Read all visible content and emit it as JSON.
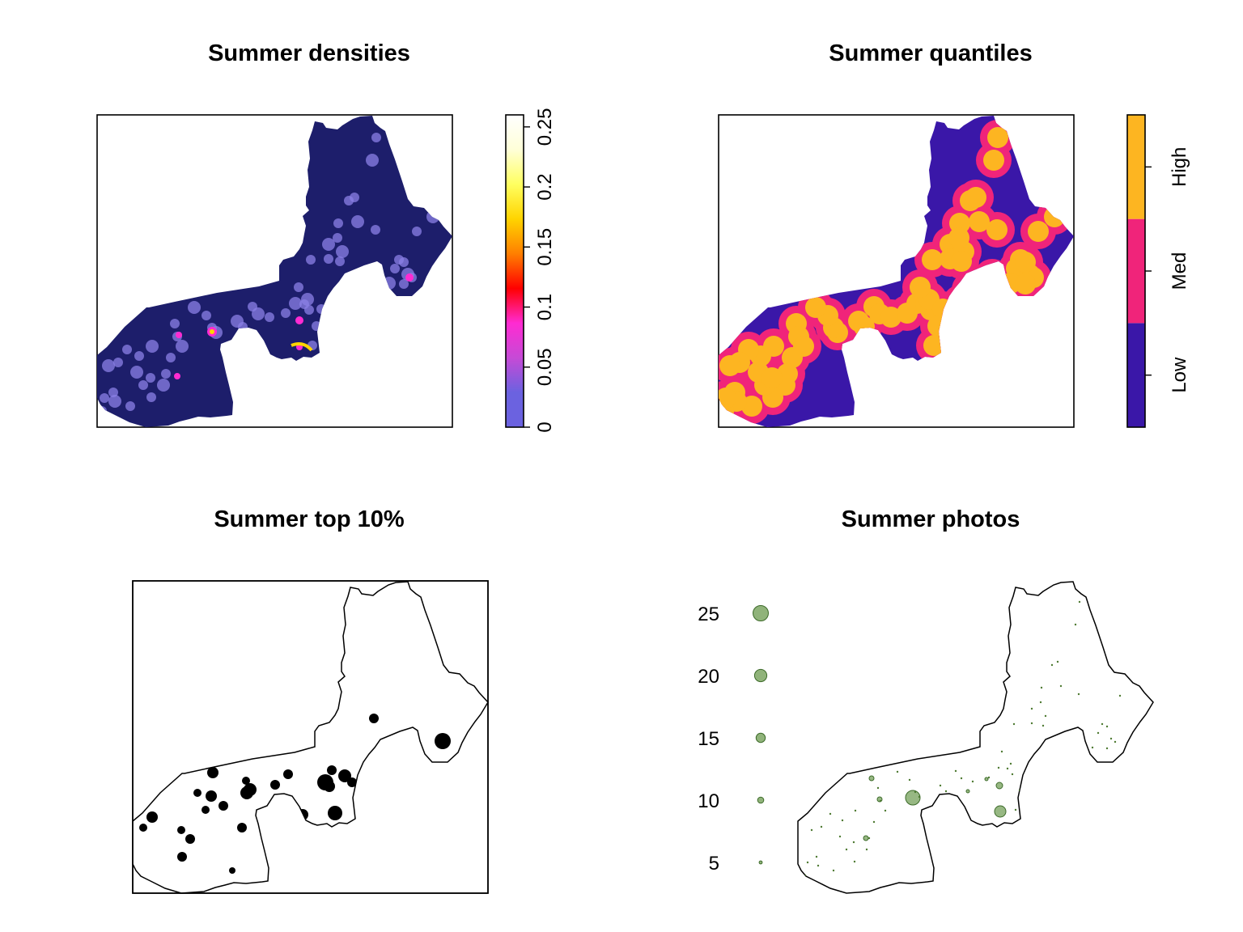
{
  "panels": {
    "densities": {
      "title": "Summer densities",
      "legend": {
        "type": "continuous",
        "range": [
          0,
          0.26
        ],
        "ticks": [
          "0",
          "0.05",
          "0.1",
          "0.15",
          "0.2",
          "0.25"
        ],
        "tick_values": [
          0,
          0.05,
          0.1,
          0.15,
          0.2,
          0.25
        ],
        "colors": [
          "#6b62e0",
          "#6b62e0",
          "#c64ad6",
          "#ff2bd2",
          "#ff0000",
          "#ff7f00",
          "#ffd400",
          "#ffff60",
          "#ffffd8",
          "#ffffff"
        ]
      },
      "background_color": "#1d1e6b",
      "hotspot_color": "#8b80e6"
    },
    "quantiles": {
      "title": "Summer quantiles",
      "legend": {
        "type": "categorical",
        "classes": [
          "Low",
          "Med",
          "High"
        ],
        "colors": [
          "#3a17a8",
          "#f0247a",
          "#fdb521"
        ]
      }
    },
    "top10": {
      "title": "Summer top 10%",
      "fill_color": "#000000"
    },
    "photos": {
      "title": "Summer photos",
      "legend": {
        "values": [
          "25",
          "20",
          "15",
          "10",
          "5"
        ],
        "point_color": "#6b9a4e"
      }
    }
  },
  "chart_data": {
    "type": "map",
    "series": [
      {
        "name": "Low"
      },
      {
        "name": "Med"
      },
      {
        "name": "High"
      }
    ]
  }
}
